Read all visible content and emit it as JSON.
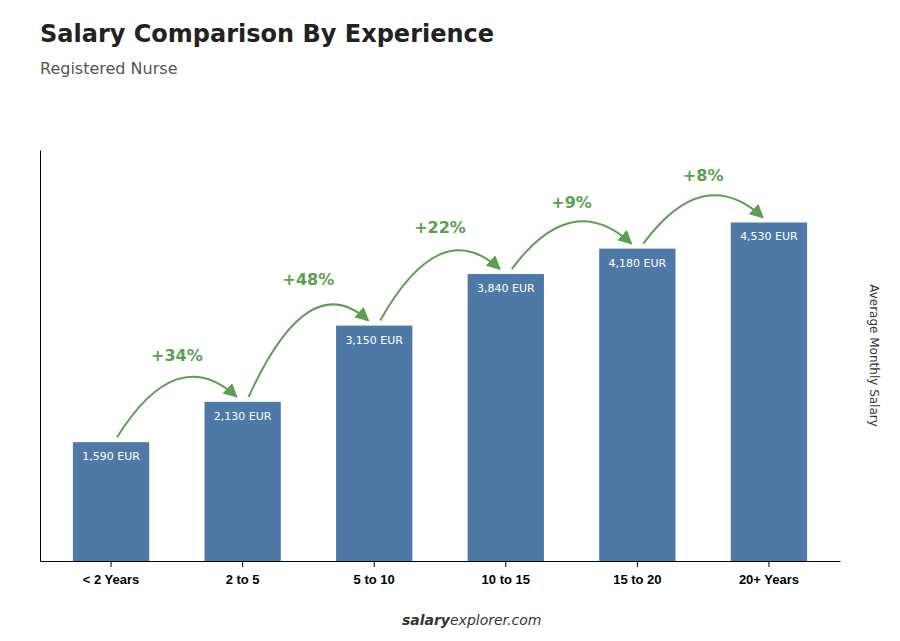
{
  "chart_data": {
    "type": "bar",
    "title": "Salary Comparison By Experience",
    "subtitle": "Registered Nurse",
    "categories": [
      "< 2 Years",
      "2 to 5",
      "5 to 10",
      "10 to 15",
      "15 to 20",
      "20+ Years"
    ],
    "values": [
      1590,
      2130,
      3150,
      3840,
      4180,
      4530
    ],
    "value_labels": [
      "1,590 EUR",
      "2,130 EUR",
      "3,150 EUR",
      "3,840 EUR",
      "4,180 EUR",
      "4,530 EUR"
    ],
    "data_labels": true,
    "ylabel": "Average Monthly Salary",
    "ylim": [
      0,
      5500
    ],
    "tick_labels": "x",
    "grid": false,
    "annotations": [
      "+34%",
      "+48%",
      "+22%",
      "+9%",
      "+8%"
    ],
    "footer": [
      "salary",
      "explorer.com"
    ]
  }
}
